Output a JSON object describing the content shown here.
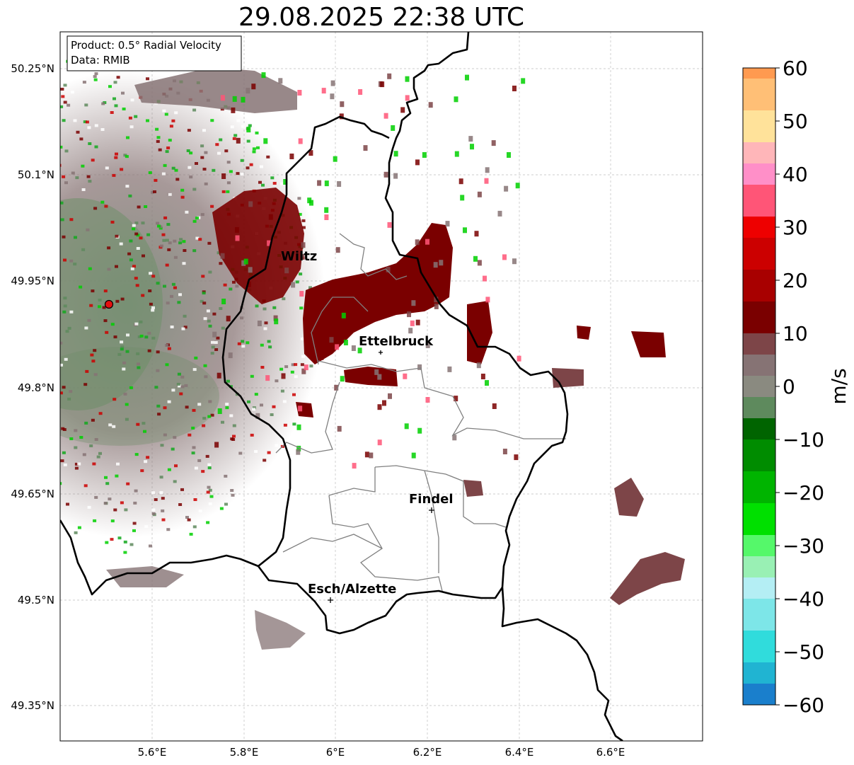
{
  "title": "29.08.2025 22:38 UTC",
  "info_box": {
    "line1": "Product: 0.5° Radial Velocity",
    "line2": "Data: RMIB"
  },
  "axes": {
    "lat_ticks": [
      "50.25°N",
      "50.1°N",
      "49.95°N",
      "49.8°N",
      "49.65°N",
      "49.5°N",
      "49.35°N"
    ],
    "lon_ticks": [
      "5.6°E",
      "5.8°E",
      "6°E",
      "6.2°E",
      "6.4°E",
      "6.6°E"
    ]
  },
  "colorbar": {
    "label": "m/s",
    "ticks": [
      "60",
      "50",
      "40",
      "30",
      "20",
      "10",
      "0",
      "−10",
      "−20",
      "−30",
      "−40",
      "−50",
      "−60"
    ],
    "range": [
      -60,
      60
    ]
  },
  "cities": [
    {
      "name": "Wiltz"
    },
    {
      "name": "Ettelbruck"
    },
    {
      "name": "Findel"
    },
    {
      "name": "Esch/Alzette"
    }
  ],
  "colors": {
    "strong_outbound": "#7a0000",
    "near_zero": "#867374",
    "inbound": "#13a81e",
    "radar_site": "#e51010"
  }
}
